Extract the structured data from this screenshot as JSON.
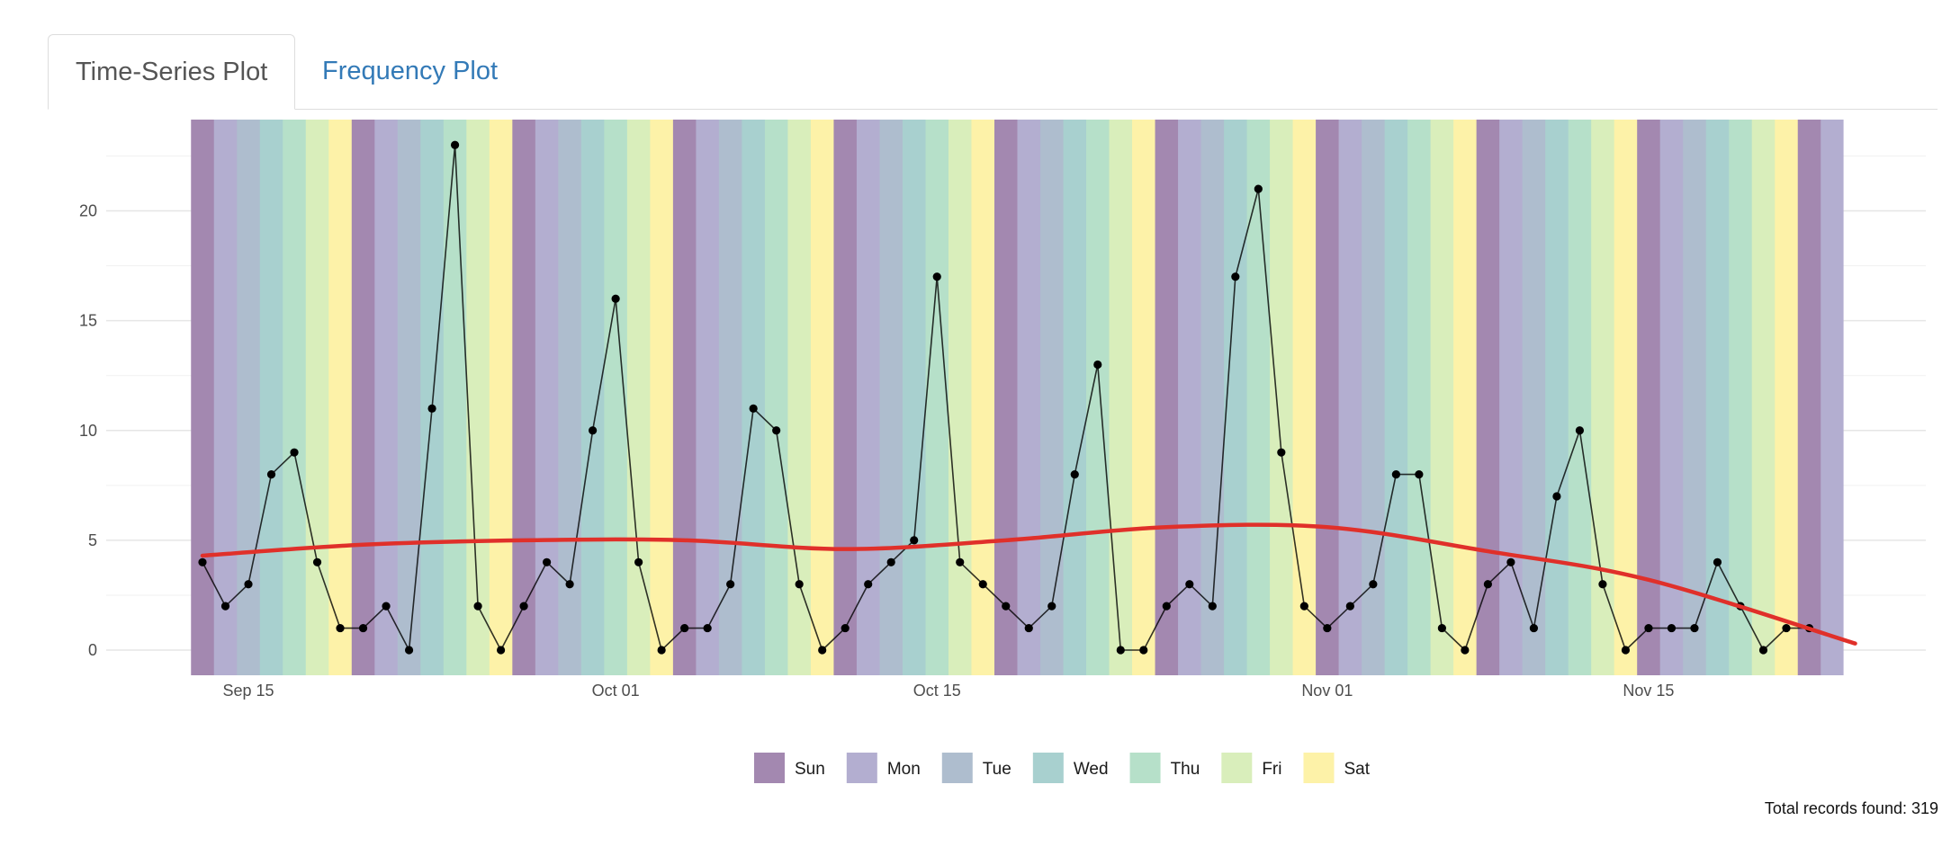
{
  "tabs": {
    "time_series": "Time-Series Plot",
    "frequency": "Frequency Plot"
  },
  "footer": {
    "total_records": "Total records found: 319"
  },
  "colors": {
    "line": "#000000",
    "smooth": "#e0302a",
    "weekday": {
      "Sun": "#a388b0",
      "Mon": "#b3aed0",
      "Tue": "#aebdce",
      "Wed": "#a8d0cf",
      "Thu": "#b6e0c9",
      "Fri": "#d9eebb",
      "Sat": "#fdf2a8"
    }
  },
  "chart_data": {
    "type": "line",
    "title": "",
    "xlabel": "",
    "ylabel": "",
    "x_start": "2020-09-13",
    "x_end": "2020-11-24",
    "xlim": [
      "2020-09-13",
      "2020-11-24"
    ],
    "ylim": [
      -1.1,
      24
    ],
    "x_ticks": [
      {
        "date": "2020-09-15",
        "label": "Sep 15"
      },
      {
        "date": "2020-10-01",
        "label": "Oct 01"
      },
      {
        "date": "2020-10-15",
        "label": "Oct 15"
      },
      {
        "date": "2020-11-01",
        "label": "Nov 01"
      },
      {
        "date": "2020-11-15",
        "label": "Nov 15"
      }
    ],
    "y_ticks": [
      0,
      5,
      10,
      15,
      20
    ],
    "grid": true,
    "background": "day-of-week shading",
    "legend": {
      "position": "bottom",
      "entries": [
        "Sun",
        "Mon",
        "Tue",
        "Wed",
        "Thu",
        "Fri",
        "Sat"
      ]
    },
    "series": [
      {
        "x": [
          "2020-09-13",
          "2020-09-14",
          "2020-09-15",
          "2020-09-16",
          "2020-09-17",
          "2020-09-18",
          "2020-09-19",
          "2020-09-20",
          "2020-09-21",
          "2020-09-22",
          "2020-09-23",
          "2020-09-24",
          "2020-09-25",
          "2020-09-26",
          "2020-09-27",
          "2020-09-28",
          "2020-09-29",
          "2020-09-30",
          "2020-10-01",
          "2020-10-02",
          "2020-10-03",
          "2020-10-04",
          "2020-10-05",
          "2020-10-06",
          "2020-10-07",
          "2020-10-08",
          "2020-10-09",
          "2020-10-10",
          "2020-10-11",
          "2020-10-12",
          "2020-10-13",
          "2020-10-14",
          "2020-10-15",
          "2020-10-16",
          "2020-10-17",
          "2020-10-18",
          "2020-10-19",
          "2020-10-20",
          "2020-10-21",
          "2020-10-22",
          "2020-10-23",
          "2020-10-24",
          "2020-10-25",
          "2020-10-26",
          "2020-10-27",
          "2020-10-28",
          "2020-10-29",
          "2020-10-30",
          "2020-10-31",
          "2020-11-01",
          "2020-11-02",
          "2020-11-03",
          "2020-11-04",
          "2020-11-05",
          "2020-11-06",
          "2020-11-07",
          "2020-11-08",
          "2020-11-09",
          "2020-11-10",
          "2020-11-11",
          "2020-11-12",
          "2020-11-13",
          "2020-11-14",
          "2020-11-15",
          "2020-11-16",
          "2020-11-17",
          "2020-11-18",
          "2020-11-19",
          "2020-11-20",
          "2020-11-21",
          "2020-11-22",
          "2020-11-23",
          "2020-11-24"
        ],
        "values": [
          4,
          2,
          3,
          8,
          9,
          4,
          1,
          1,
          2,
          0,
          11,
          23,
          2,
          0,
          2,
          4,
          3,
          10,
          16,
          4,
          0,
          1,
          1,
          3,
          11,
          10,
          3,
          0,
          1,
          3,
          4,
          5,
          17,
          4,
          3,
          2,
          1,
          2,
          8,
          13,
          0,
          0,
          2,
          3,
          2,
          17,
          21,
          9,
          2,
          1,
          2,
          3,
          8,
          8,
          1,
          0,
          3,
          4,
          1,
          7,
          10,
          3,
          0,
          1,
          1,
          1,
          4,
          2,
          0,
          1,
          1,
          null,
          null
        ]
      },
      {
        "x": [
          "2020-09-13",
          "2020-09-20",
          "2020-09-27",
          "2020-10-04",
          "2020-10-11",
          "2020-10-18",
          "2020-10-25",
          "2020-11-01",
          "2020-11-08",
          "2020-11-15",
          "2020-11-24"
        ],
        "values": [
          4.3,
          4.8,
          5.0,
          5.0,
          4.6,
          5.0,
          5.6,
          5.6,
          4.5,
          3.2,
          0.3
        ]
      }
    ]
  }
}
